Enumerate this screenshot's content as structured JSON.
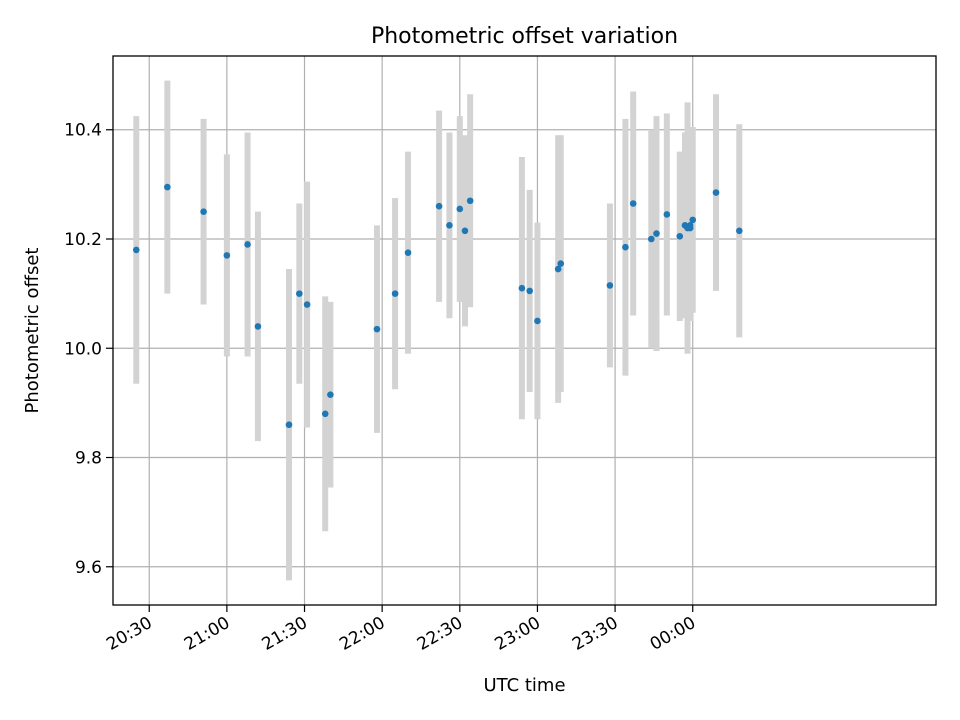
{
  "chart_data": {
    "type": "scatter",
    "title": "Photometric offset variation",
    "xlabel": "UTC time",
    "ylabel": "Photometric offset",
    "grid": true,
    "x_unit": "UTC time (HH:MM)",
    "xlim": [
      "20:16",
      "01:34"
    ],
    "ylim": [
      9.53,
      10.535
    ],
    "x_ticks": [
      "20:30",
      "21:00",
      "21:30",
      "22:00",
      "22:30",
      "23:00",
      "23:30",
      "00:00"
    ],
    "y_ticks": [
      9.6,
      9.8,
      10.0,
      10.2,
      10.4
    ],
    "y_tick_labels": [
      "9.6",
      "9.8",
      "10.0",
      "10.2",
      "10.4"
    ],
    "colors": {
      "point": "#1f77b4",
      "errorbar": "#d3d3d3",
      "grid": "#b0b0b0"
    },
    "points": [
      {
        "x": "20:25",
        "y": 10.18,
        "yerr": 0.245
      },
      {
        "x": "20:37",
        "y": 10.295,
        "yerr": 0.195
      },
      {
        "x": "20:51",
        "y": 10.25,
        "yerr": 0.17
      },
      {
        "x": "21:00",
        "y": 10.17,
        "yerr": 0.185
      },
      {
        "x": "21:08",
        "y": 10.19,
        "yerr": 0.205
      },
      {
        "x": "21:12",
        "y": 10.04,
        "yerr": 0.21
      },
      {
        "x": "21:24",
        "y": 9.86,
        "yerr": 0.285
      },
      {
        "x": "21:28",
        "y": 10.1,
        "yerr": 0.165
      },
      {
        "x": "21:31",
        "y": 10.08,
        "yerr": 0.225
      },
      {
        "x": "21:38",
        "y": 9.88,
        "yerr": 0.215
      },
      {
        "x": "21:40",
        "y": 9.915,
        "yerr": 0.17
      },
      {
        "x": "21:58",
        "y": 10.035,
        "yerr": 0.19
      },
      {
        "x": "22:05",
        "y": 10.1,
        "yerr": 0.175
      },
      {
        "x": "22:10",
        "y": 10.175,
        "yerr": 0.185
      },
      {
        "x": "22:22",
        "y": 10.26,
        "yerr": 0.175
      },
      {
        "x": "22:26",
        "y": 10.225,
        "yerr": 0.17
      },
      {
        "x": "22:30",
        "y": 10.255,
        "yerr": 0.17
      },
      {
        "x": "22:32",
        "y": 10.215,
        "yerr": 0.175
      },
      {
        "x": "22:34",
        "y": 10.27,
        "yerr": 0.195
      },
      {
        "x": "22:54",
        "y": 10.11,
        "yerr": 0.24
      },
      {
        "x": "22:57",
        "y": 10.105,
        "yerr": 0.185
      },
      {
        "x": "23:00",
        "y": 10.05,
        "yerr": 0.18
      },
      {
        "x": "23:08",
        "y": 10.145,
        "yerr": 0.245
      },
      {
        "x": "23:09",
        "y": 10.155,
        "yerr": 0.235
      },
      {
        "x": "23:28",
        "y": 10.115,
        "yerr": 0.15
      },
      {
        "x": "23:34",
        "y": 10.185,
        "yerr": 0.235
      },
      {
        "x": "23:37",
        "y": 10.265,
        "yerr": 0.205
      },
      {
        "x": "23:44",
        "y": 10.2,
        "yerr": 0.2
      },
      {
        "x": "23:46",
        "y": 10.21,
        "yerr": 0.215
      },
      {
        "x": "23:50",
        "y": 10.245,
        "yerr": 0.185
      },
      {
        "x": "23:55",
        "y": 10.205,
        "yerr": 0.155
      },
      {
        "x": "23:57",
        "y": 10.225,
        "yerr": 0.17
      },
      {
        "x": "23:58",
        "y": 10.22,
        "yerr": 0.23
      },
      {
        "x": "23:59",
        "y": 10.225,
        "yerr": 0.175
      },
      {
        "x": "23:59",
        "y": 10.22,
        "yerr": 0.16
      },
      {
        "x": "00:00",
        "y": 10.235,
        "yerr": 0.17
      },
      {
        "x": "00:09",
        "y": 10.285,
        "yerr": 0.18
      },
      {
        "x": "00:18",
        "y": 10.215,
        "yerr": 0.195
      }
    ]
  }
}
